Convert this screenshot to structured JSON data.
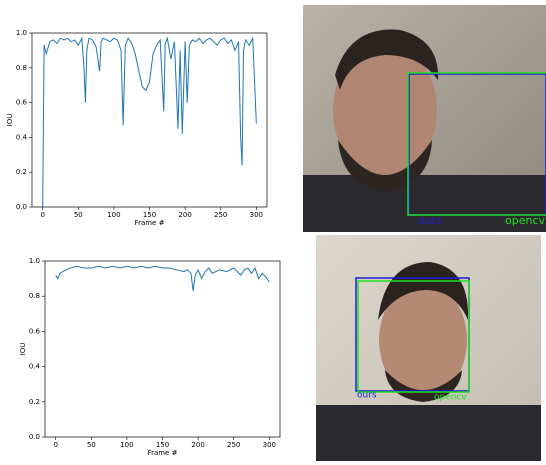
{
  "chart_data": [
    {
      "type": "line",
      "xlabel": "Frame #",
      "ylabel": "IOU",
      "color": "#1f77b4",
      "xlim": [
        -15,
        315
      ],
      "ylim": [
        0,
        1.0
      ],
      "xticks": [
        0,
        50,
        100,
        150,
        200,
        250,
        300
      ],
      "yticks": [
        {
          "value": 0,
          "label": "0.0"
        },
        {
          "value": 0.2,
          "label": "0.2"
        },
        {
          "value": 0.4,
          "label": "0.4"
        },
        {
          "value": 0.6,
          "label": "0.6"
        },
        {
          "value": 0.8,
          "label": "0.8"
        },
        {
          "value": 1.0,
          "label": "1.0"
        }
      ],
      "x": [
        0,
        2,
        5,
        10,
        15,
        20,
        25,
        30,
        35,
        40,
        45,
        50,
        55,
        58,
        60,
        62,
        65,
        70,
        75,
        80,
        82,
        85,
        90,
        95,
        100,
        105,
        110,
        113,
        116,
        120,
        125,
        130,
        135,
        140,
        145,
        150,
        155,
        160,
        165,
        170,
        172,
        175,
        180,
        185,
        190,
        193,
        196,
        200,
        203,
        206,
        210,
        215,
        220,
        225,
        230,
        235,
        240,
        245,
        250,
        255,
        260,
        265,
        270,
        275,
        278,
        280,
        282,
        285,
        290,
        295,
        300
      ],
      "values": [
        0,
        0.93,
        0.88,
        0.95,
        0.96,
        0.94,
        0.97,
        0.96,
        0.97,
        0.95,
        0.96,
        0.93,
        0.97,
        0.8,
        0.6,
        0.9,
        0.97,
        0.96,
        0.92,
        0.78,
        0.95,
        0.97,
        0.96,
        0.95,
        0.97,
        0.96,
        0.9,
        0.47,
        0.93,
        0.97,
        0.94,
        0.88,
        0.78,
        0.69,
        0.67,
        0.72,
        0.88,
        0.93,
        0.96,
        0.55,
        0.94,
        0.97,
        0.85,
        0.95,
        0.45,
        0.9,
        0.42,
        0.95,
        0.6,
        0.93,
        0.96,
        0.95,
        0.97,
        0.94,
        0.96,
        0.97,
        0.95,
        0.93,
        0.96,
        0.97,
        0.94,
        0.96,
        0.9,
        0.95,
        0.4,
        0.24,
        0.9,
        0.96,
        0.93,
        0.97,
        0.48
      ]
    },
    {
      "type": "line",
      "xlabel": "Frame #",
      "ylabel": "IOU",
      "color": "#1f77b4",
      "xlim": [
        -15,
        315
      ],
      "ylim": [
        0,
        1.0
      ],
      "xticks": [
        0,
        50,
        100,
        150,
        200,
        250,
        300
      ],
      "yticks": [
        {
          "value": 0,
          "label": "0.0"
        },
        {
          "value": 0.2,
          "label": "0.2"
        },
        {
          "value": 0.4,
          "label": "0.4"
        },
        {
          "value": 0.6,
          "label": "0.6"
        },
        {
          "value": 0.8,
          "label": "0.8"
        },
        {
          "value": 1.0,
          "label": "1.0"
        }
      ],
      "x": [
        0,
        3,
        6,
        10,
        15,
        20,
        30,
        40,
        50,
        60,
        70,
        80,
        90,
        100,
        110,
        120,
        130,
        140,
        150,
        160,
        170,
        180,
        185,
        190,
        193,
        196,
        200,
        205,
        210,
        215,
        220,
        230,
        240,
        250,
        260,
        265,
        270,
        275,
        280,
        285,
        290,
        295,
        300
      ],
      "values": [
        0.92,
        0.9,
        0.93,
        0.94,
        0.95,
        0.96,
        0.97,
        0.96,
        0.96,
        0.97,
        0.96,
        0.97,
        0.96,
        0.97,
        0.96,
        0.97,
        0.96,
        0.97,
        0.96,
        0.96,
        0.95,
        0.94,
        0.95,
        0.93,
        0.83,
        0.92,
        0.95,
        0.9,
        0.94,
        0.96,
        0.93,
        0.95,
        0.94,
        0.96,
        0.92,
        0.95,
        0.96,
        0.93,
        0.96,
        0.9,
        0.93,
        0.91,
        0.88
      ]
    }
  ],
  "photos": [
    {
      "labels": [
        "ours",
        "opencv"
      ]
    },
    {
      "labels": [
        "ours",
        "opencv"
      ]
    }
  ]
}
